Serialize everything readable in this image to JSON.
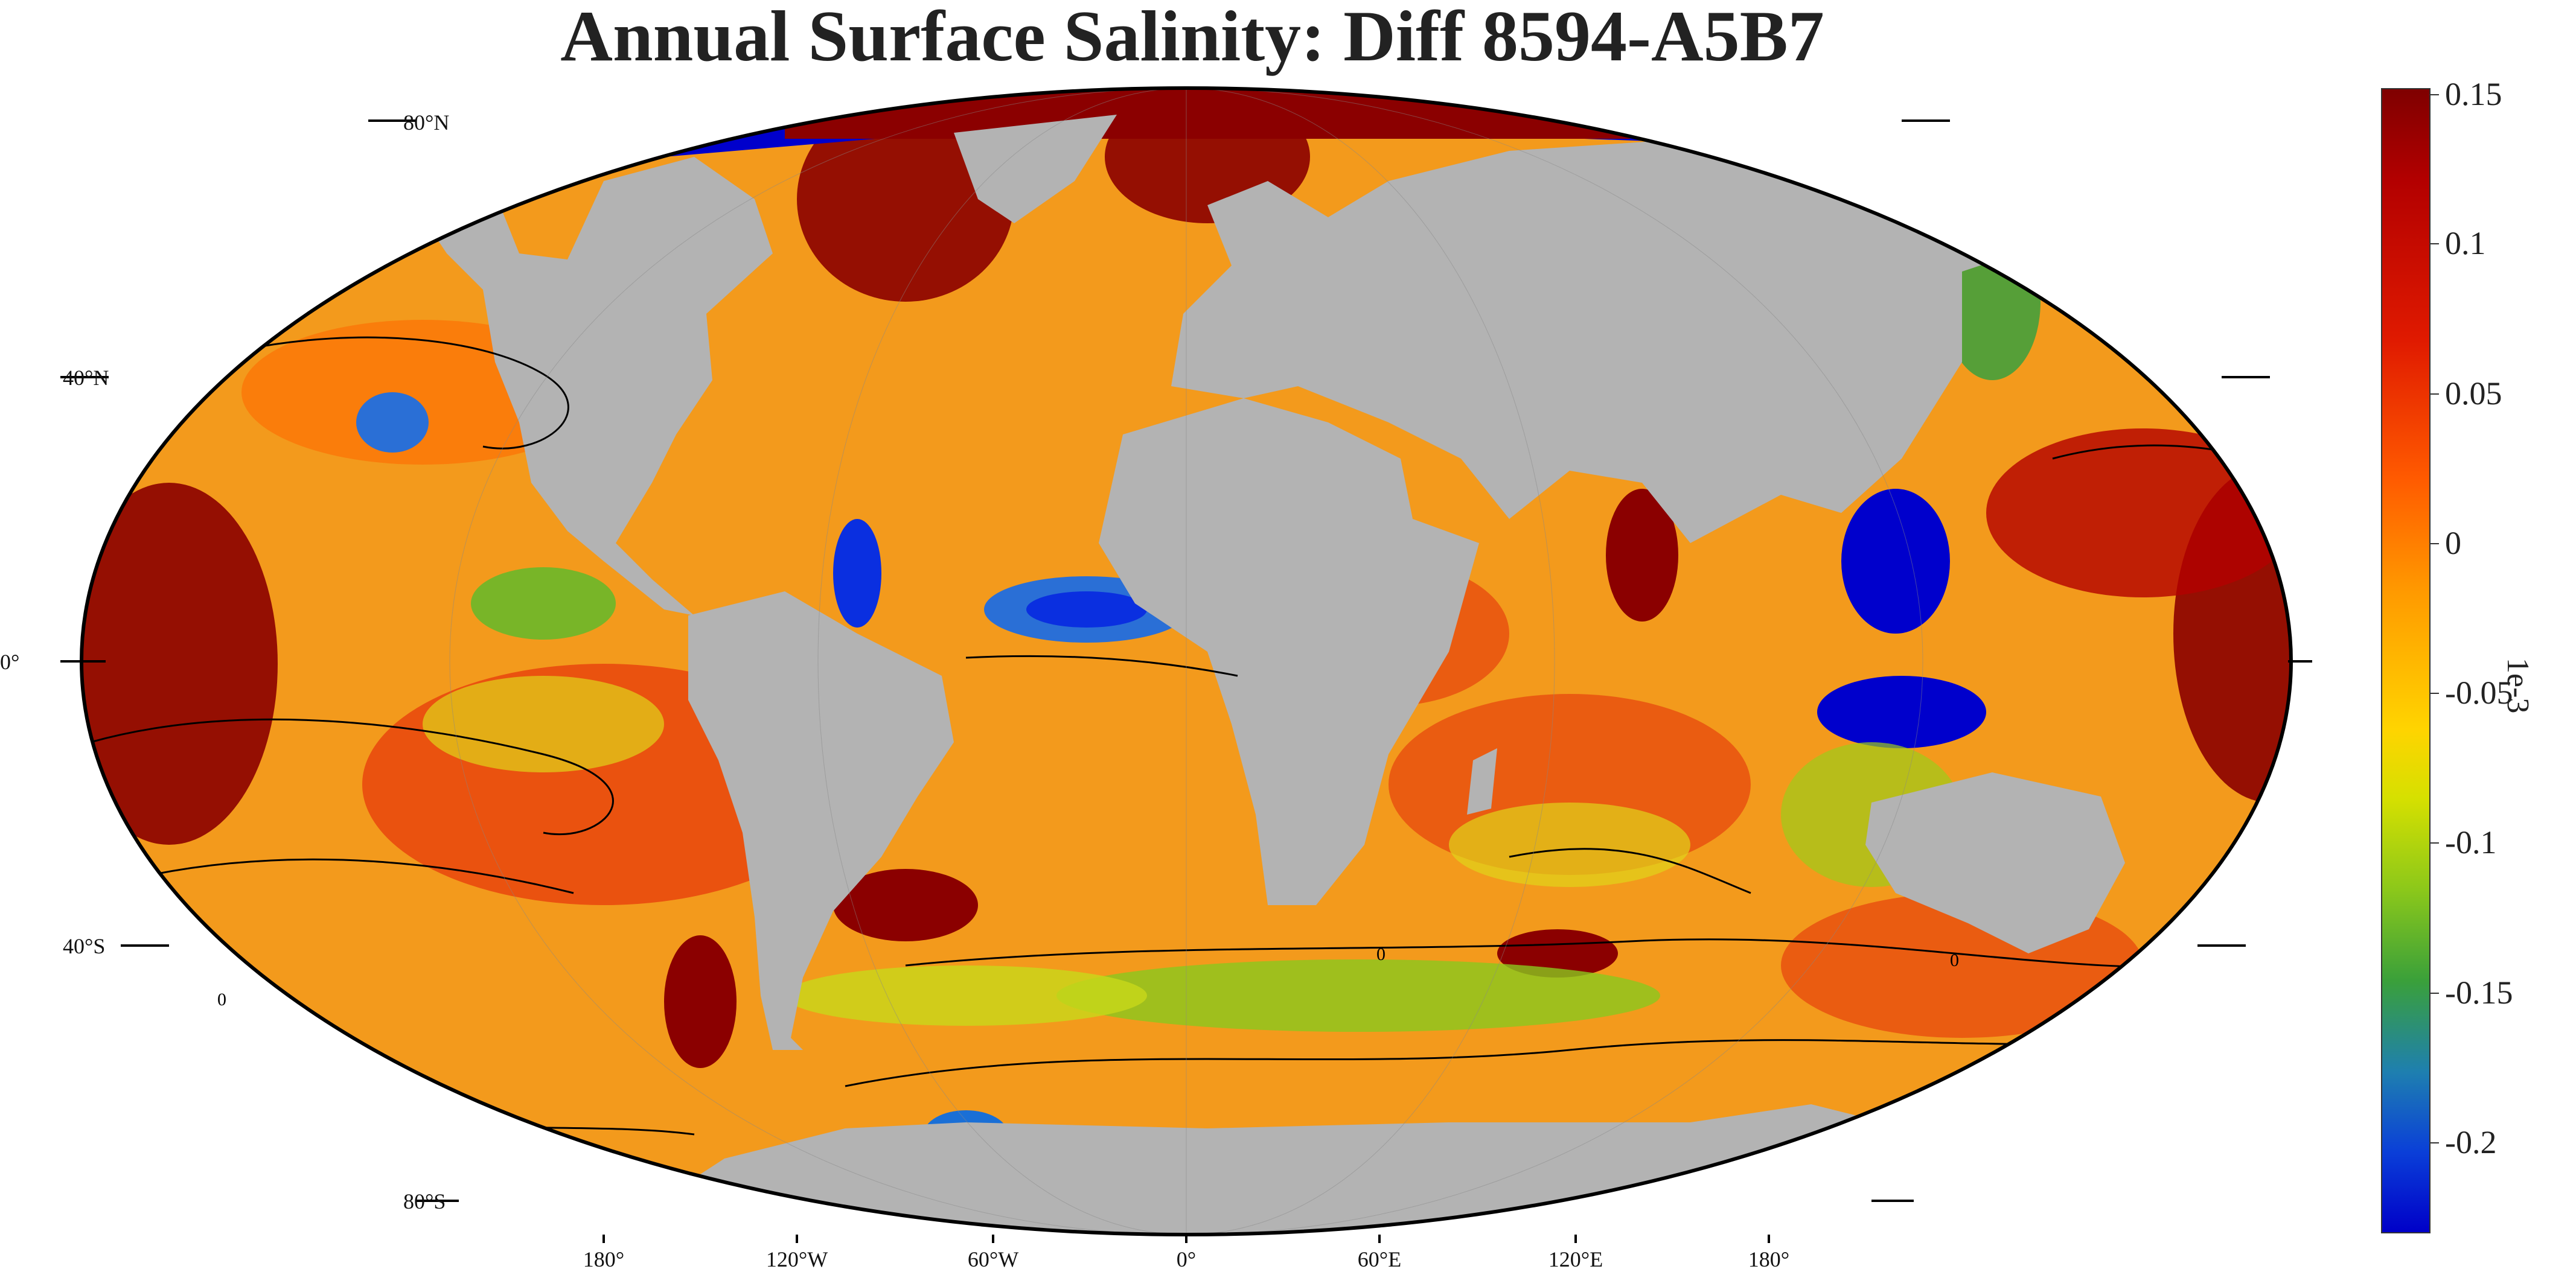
{
  "title": "Annual Surface Salinity: Diff 8594-A5B7",
  "colors": {
    "land": "#b3b3b3",
    "ocean_base": "#f5a623",
    "positive": "#8b0000",
    "negative": "#0000cc",
    "contour": "#000000"
  },
  "latitude_labels": [
    "80°N",
    "40°N",
    "0°",
    "40°S",
    "80°S"
  ],
  "longitude_labels": [
    "180°",
    "120°W",
    "60°W",
    "0°",
    "60°E",
    "120°E",
    "180°"
  ],
  "contour_label": "0",
  "colorbar": {
    "unit": "1e-3",
    "ticks": [
      "0.15",
      "0.1",
      "0.05",
      "0",
      "-0.05",
      "-0.1",
      "-0.15",
      "-0.2"
    ],
    "range": [
      -0.23,
      0.15
    ]
  }
}
